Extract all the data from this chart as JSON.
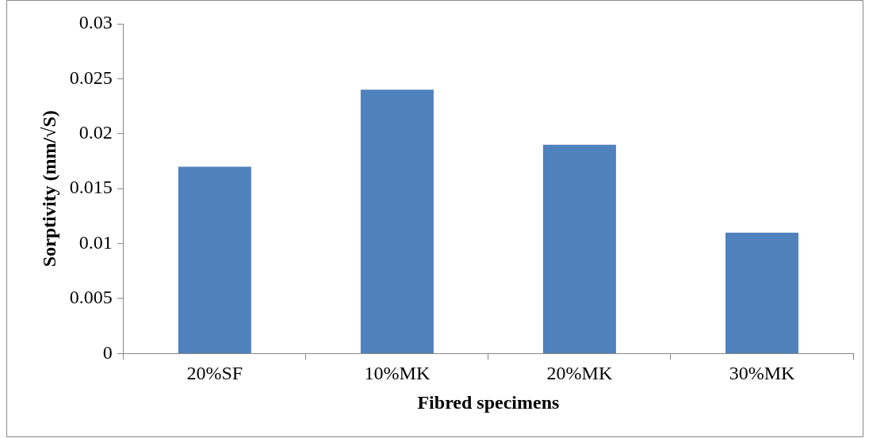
{
  "chart_data": {
    "type": "bar",
    "xlabel": "Fibred specimens",
    "ylabel": "Sorptivity (mm/√S)",
    "categories": [
      "20%SF",
      "10%MK",
      "20%MK",
      "30%MK"
    ],
    "values": [
      0.017,
      0.024,
      0.019,
      0.011
    ],
    "color": "#4f81bd",
    "ylim": [
      0,
      0.03
    ],
    "yticks": [
      0,
      0.005,
      0.01,
      0.015,
      0.02,
      0.025,
      0.03
    ],
    "grid": false,
    "legend": false
  }
}
